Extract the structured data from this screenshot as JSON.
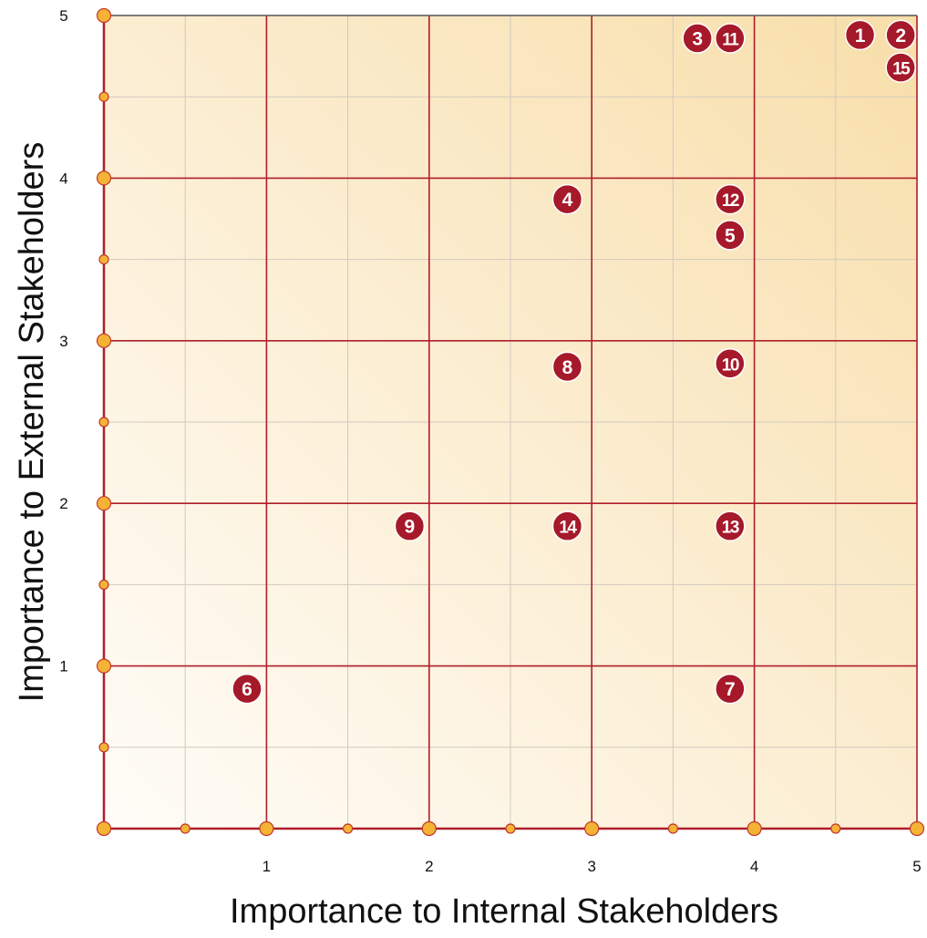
{
  "chart_data": {
    "type": "scatter",
    "xlabel": "Importance to Internal Stakeholders",
    "ylabel": "Importance to External Stakeholders",
    "xlim": [
      0,
      5
    ],
    "ylim": [
      0,
      5
    ],
    "x_ticks": [
      1,
      2,
      3,
      4,
      5
    ],
    "y_ticks": [
      1,
      2,
      3,
      4,
      5
    ],
    "grid": true,
    "colors": {
      "major_grid": "#b01e2a",
      "minor_grid": "#d2c9bf",
      "tick_dot_fill": "#f5b335",
      "tick_dot_stroke": "#c0392b",
      "marker": "#a5192a",
      "marker_text": "#ffffff",
      "background_light": "#fffdf9",
      "background_dark": "#f8deaa"
    },
    "points": [
      {
        "label": "1",
        "x": 4.65,
        "y": 4.88
      },
      {
        "label": "2",
        "x": 4.9,
        "y": 4.88
      },
      {
        "label": "3",
        "x": 3.65,
        "y": 4.86
      },
      {
        "label": "11",
        "x": 3.85,
        "y": 4.86
      },
      {
        "label": "15",
        "x": 4.9,
        "y": 4.68
      },
      {
        "label": "4",
        "x": 2.85,
        "y": 3.87
      },
      {
        "label": "12",
        "x": 3.85,
        "y": 3.87
      },
      {
        "label": "5",
        "x": 3.85,
        "y": 3.65
      },
      {
        "label": "8",
        "x": 2.85,
        "y": 2.84
      },
      {
        "label": "10",
        "x": 3.85,
        "y": 2.86
      },
      {
        "label": "9",
        "x": 1.88,
        "y": 1.86
      },
      {
        "label": "14",
        "x": 2.85,
        "y": 1.86
      },
      {
        "label": "13",
        "x": 3.85,
        "y": 1.86
      },
      {
        "label": "6",
        "x": 0.88,
        "y": 0.86
      },
      {
        "label": "7",
        "x": 3.85,
        "y": 0.86
      }
    ]
  }
}
